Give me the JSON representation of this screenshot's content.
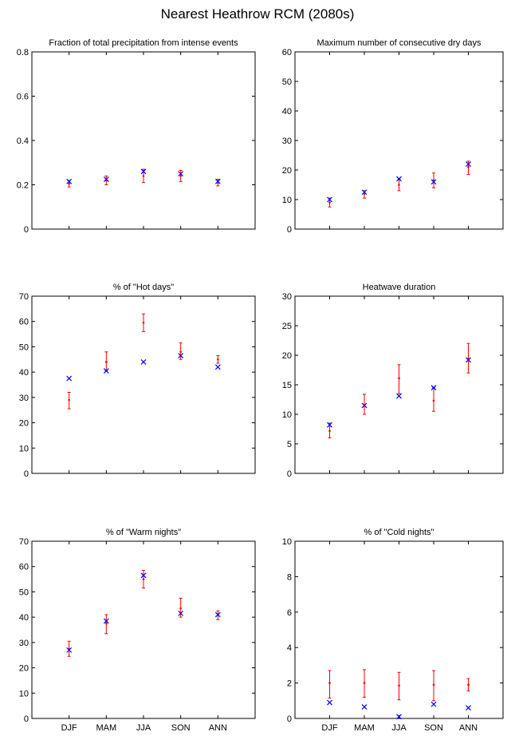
{
  "title": "Nearest Heathrow RCM (2080s)",
  "colors": {
    "model_marker": "#0000ff",
    "observed_errorbar": "#ff0000",
    "axes": "#000000"
  },
  "chart_data": [
    {
      "type": "scatter",
      "title": "Fraction of total precipitation from intense events",
      "categories": [
        "DJF",
        "MAM",
        "JJA",
        "SON",
        "ANN"
      ],
      "show_xticklabels": false,
      "ylim": [
        0,
        0.8
      ],
      "yticks": [
        0,
        0.2,
        0.4,
        0.6,
        0.8
      ],
      "ytick_labels": [
        "0",
        "0.2",
        "0.4",
        "0.6",
        "0.8"
      ],
      "grid": false,
      "errorbars": {
        "center": [
          0.205,
          0.22,
          0.24,
          0.24,
          0.21
        ],
        "low": [
          0.19,
          0.2,
          0.21,
          0.215,
          0.195
        ],
        "high": [
          0.22,
          0.24,
          0.27,
          0.265,
          0.225
        ]
      },
      "markers": [
        0.215,
        0.225,
        0.26,
        0.25,
        0.215
      ]
    },
    {
      "type": "scatter",
      "title": "Maximum number of consecutive dry days",
      "categories": [
        "DJF",
        "MAM",
        "JJA",
        "SON",
        "ANN"
      ],
      "show_xticklabels": false,
      "ylim": [
        0,
        60
      ],
      "yticks": [
        0,
        10,
        20,
        30,
        40,
        50,
        60
      ],
      "ytick_labels": [
        "0",
        "10",
        "20",
        "30",
        "40",
        "50",
        "60"
      ],
      "grid": false,
      "errorbars": {
        "center": [
          9,
          12,
          15,
          16.5,
          21
        ],
        "low": [
          7.5,
          10.5,
          13,
          14,
          18.5
        ],
        "high": [
          10.5,
          13,
          17,
          19,
          23
        ]
      },
      "markers": [
        10,
        12.5,
        17,
        16,
        22
      ]
    },
    {
      "type": "scatter",
      "title": "% of \"Hot days\"",
      "categories": [
        "DJF",
        "MAM",
        "JJA",
        "SON",
        "ANN"
      ],
      "show_xticklabels": false,
      "ylim": [
        0,
        70
      ],
      "yticks": [
        0,
        10,
        20,
        30,
        40,
        50,
        60,
        70
      ],
      "ytick_labels": [
        "0",
        "10",
        "20",
        "30",
        "40",
        "50",
        "60",
        "70"
      ],
      "grid": false,
      "errorbars": {
        "center": [
          29,
          44,
          59.5,
          48,
          45
        ],
        "low": [
          25.5,
          40.5,
          56,
          45,
          43.5
        ],
        "high": [
          32,
          48,
          63,
          51.5,
          46.5
        ]
      },
      "markers": [
        37.5,
        40.5,
        44,
        46.5,
        42
      ]
    },
    {
      "type": "scatter",
      "title": "Heatwave duration",
      "categories": [
        "DJF",
        "MAM",
        "JJA",
        "SON",
        "ANN"
      ],
      "show_xticklabels": false,
      "ylim": [
        0,
        30
      ],
      "yticks": [
        0,
        5,
        10,
        15,
        20,
        25,
        30
      ],
      "ytick_labels": [
        "0",
        "5",
        "10",
        "15",
        "20",
        "25",
        "30"
      ],
      "grid": false,
      "errorbars": {
        "center": [
          7.2,
          11.5,
          16.1,
          12.3,
          19.4
        ],
        "low": [
          6,
          10,
          13.5,
          10.5,
          17
        ],
        "high": [
          8.5,
          13.4,
          18.4,
          14.5,
          22
        ]
      },
      "markers": [
        8.2,
        11.5,
        13.1,
        14.5,
        19.2
      ]
    },
    {
      "type": "scatter",
      "title": "% of \"Warm nights\"",
      "categories": [
        "DJF",
        "MAM",
        "JJA",
        "SON",
        "ANN"
      ],
      "show_xticklabels": true,
      "ylim": [
        0,
        70
      ],
      "yticks": [
        0,
        10,
        20,
        30,
        40,
        50,
        60,
        70
      ],
      "ytick_labels": [
        "0",
        "10",
        "20",
        "30",
        "40",
        "50",
        "60",
        "70"
      ],
      "grid": false,
      "errorbars": {
        "center": [
          27.5,
          37.5,
          55,
          43.5,
          41
        ],
        "low": [
          24.5,
          33.5,
          51.5,
          40,
          39
        ],
        "high": [
          30.5,
          41,
          58.5,
          47.5,
          42.5
        ]
      },
      "markers": [
        27,
        38.5,
        56.5,
        41.5,
        41
      ]
    },
    {
      "type": "scatter",
      "title": "% of \"Cold nights\"",
      "categories": [
        "DJF",
        "MAM",
        "JJA",
        "SON",
        "ANN"
      ],
      "show_xticklabels": true,
      "ylim": [
        0,
        10
      ],
      "yticks": [
        0,
        2,
        4,
        6,
        8,
        10
      ],
      "ytick_labels": [
        "0",
        "2",
        "4",
        "6",
        "8",
        "10"
      ],
      "grid": false,
      "errorbars": {
        "center": [
          2,
          2,
          1.85,
          1.9,
          1.9
        ],
        "low": [
          1.15,
          1.2,
          1.05,
          1.0,
          1.55
        ],
        "high": [
          2.7,
          2.75,
          2.6,
          2.7,
          2.25
        ]
      },
      "markers": [
        0.9,
        0.65,
        0.1,
        0.8,
        0.6
      ]
    }
  ]
}
